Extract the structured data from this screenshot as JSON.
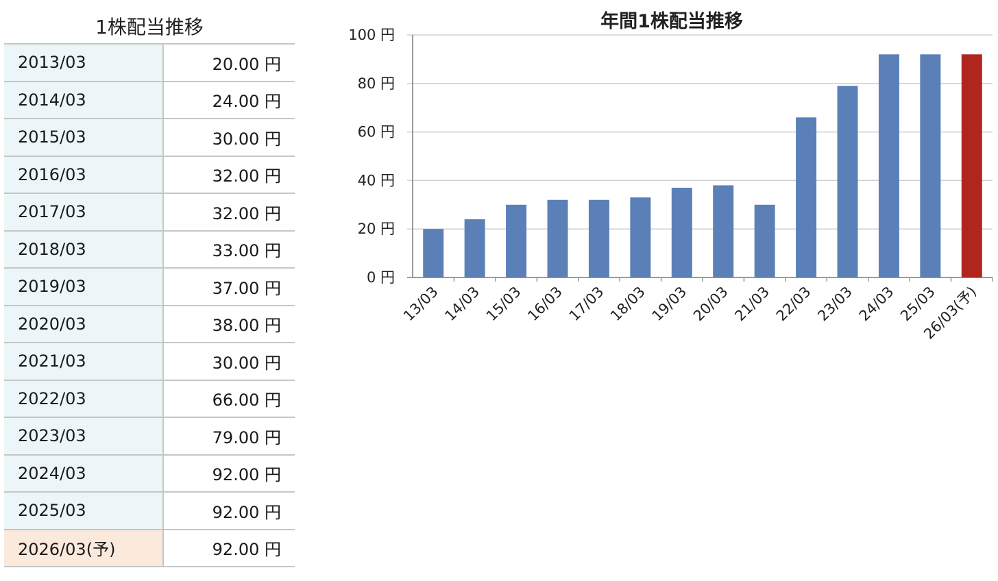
{
  "table": {
    "title": "1株配当推移",
    "rows": [
      {
        "year": "2013/03",
        "value": "20.00 円"
      },
      {
        "year": "2014/03",
        "value": "24.00 円"
      },
      {
        "year": "2015/03",
        "value": "30.00 円"
      },
      {
        "year": "2016/03",
        "value": "32.00 円"
      },
      {
        "year": "2017/03",
        "value": "32.00 円"
      },
      {
        "year": "2018/03",
        "value": "33.00 円"
      },
      {
        "year": "2019/03",
        "value": "37.00 円"
      },
      {
        "year": "2020/03",
        "value": "38.00 円"
      },
      {
        "year": "2021/03",
        "value": "30.00 円"
      },
      {
        "year": "2022/03",
        "value": "66.00 円"
      },
      {
        "year": "2023/03",
        "value": "79.00 円"
      },
      {
        "year": "2024/03",
        "value": "92.00 円"
      },
      {
        "year": "2025/03",
        "value": "92.00 円"
      },
      {
        "year": "2026/03(予)",
        "value": "92.00 円"
      }
    ]
  },
  "chart_data": {
    "type": "bar",
    "title": "年間1株配当推移",
    "categories": [
      "13/03",
      "14/03",
      "15/03",
      "16/03",
      "17/03",
      "18/03",
      "19/03",
      "20/03",
      "21/03",
      "22/03",
      "23/03",
      "24/03",
      "25/03",
      "26/03(予)"
    ],
    "values": [
      20,
      24,
      30,
      32,
      32,
      33,
      37,
      38,
      30,
      66,
      79,
      92,
      92,
      92
    ],
    "yticks": [
      "0 円",
      "20 円",
      "40 円",
      "60 円",
      "80 円",
      "100 円"
    ],
    "ylim": [
      0,
      100
    ],
    "grid": true,
    "colors": {
      "actual": "#5b80b8",
      "forecast": "#b0261e"
    }
  }
}
